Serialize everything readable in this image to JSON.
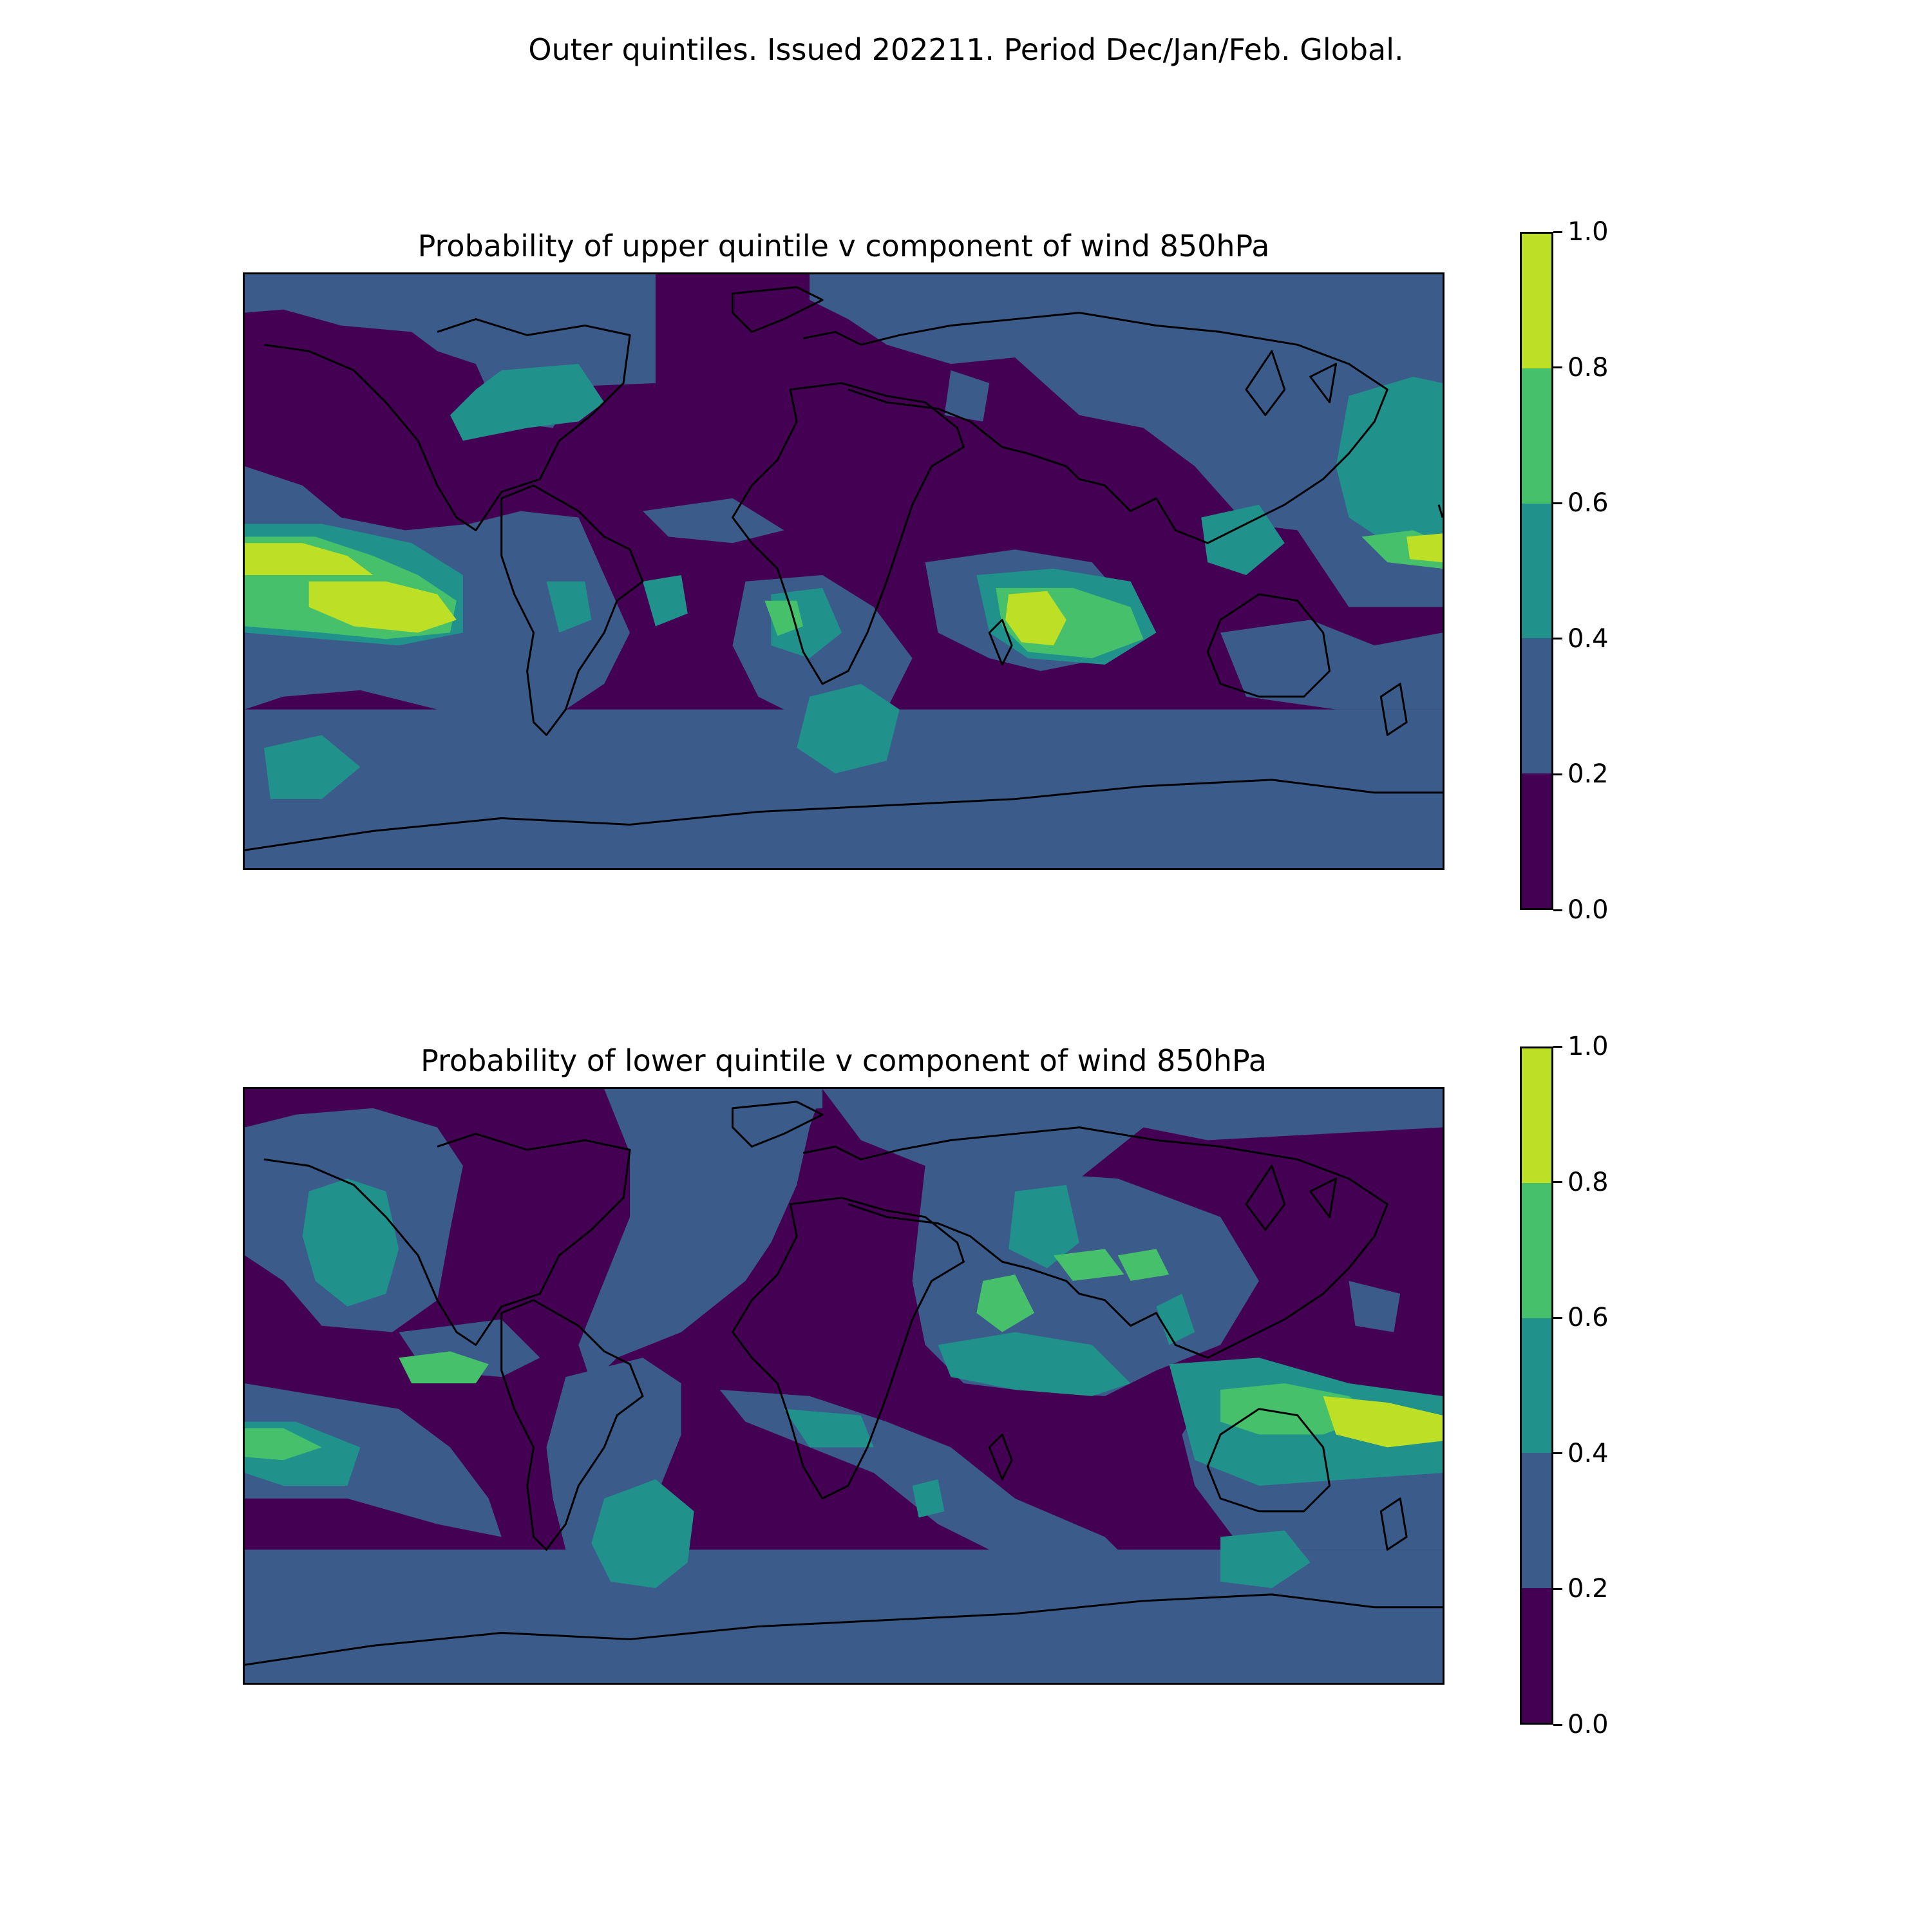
{
  "figure": {
    "suptitle": "Outer quintiles. Issued 202211. Period Dec/Jan/Feb. Global."
  },
  "colorbar": {
    "levels": [
      "0.0",
      "0.2",
      "0.4",
      "0.6",
      "0.8",
      "1.0"
    ],
    "colors": [
      "#440154",
      "#3b5b8a",
      "#21918c",
      "#46c06a",
      "#bddf26"
    ]
  },
  "panels": [
    {
      "title": "Probability of upper quintile v component of wind 850hPa"
    },
    {
      "title": "Probability of lower quintile v component of wind 850hPa"
    }
  ]
}
